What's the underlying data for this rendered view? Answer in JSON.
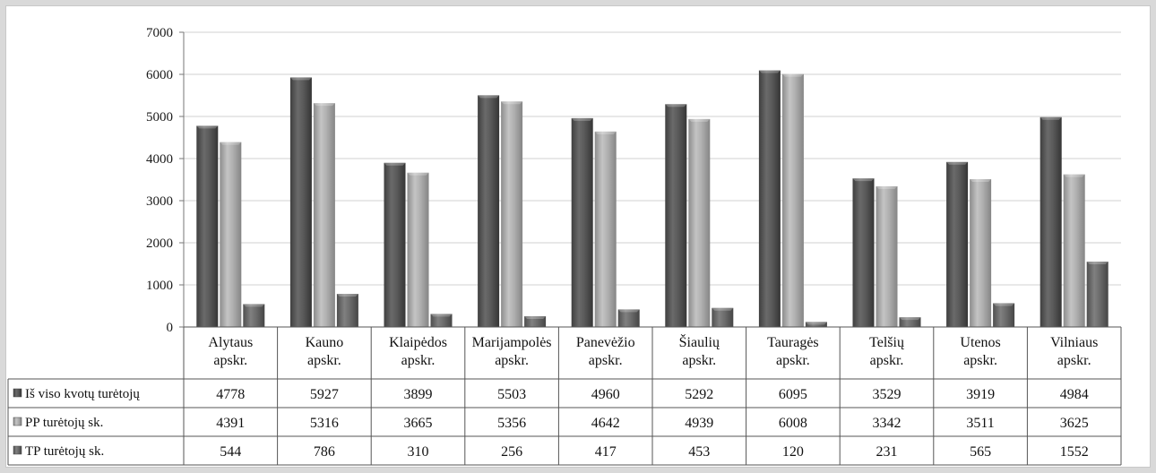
{
  "chart_data": {
    "type": "bar",
    "categories": [
      [
        "Alytaus",
        "apskr."
      ],
      [
        "Kauno",
        "apskr."
      ],
      [
        "Klaipėdos",
        "apskr."
      ],
      [
        "Marijampolės",
        "apskr."
      ],
      [
        "Panevėžio",
        "apskr."
      ],
      [
        "Šiaulių",
        "apskr."
      ],
      [
        "Tauragės",
        "apskr."
      ],
      [
        "Telšių",
        "apskr."
      ],
      [
        "Utenos",
        "apskr."
      ],
      [
        "Vilniaus",
        "apskr."
      ]
    ],
    "series": [
      {
        "name": "Iš viso kvotų turėtojų",
        "values": [
          4778,
          5927,
          3899,
          5503,
          4960,
          5292,
          6095,
          3529,
          3919,
          4984
        ],
        "color": "#555555"
      },
      {
        "name": "PP turėtojų sk.",
        "values": [
          4391,
          5316,
          3665,
          5356,
          4642,
          4939,
          6008,
          3342,
          3511,
          3625
        ],
        "color": "#a8a8a8"
      },
      {
        "name": "TP turėtojų sk.",
        "values": [
          544,
          786,
          310,
          256,
          417,
          453,
          120,
          231,
          565,
          1552
        ],
        "color": "#6e6e6e"
      }
    ],
    "y_ticks": [
      "0",
      "1000",
      "2000",
      "3000",
      "4000",
      "5000",
      "6000",
      "7000"
    ],
    "ylim": [
      0,
      7000
    ],
    "grid": true,
    "legend": "data-table",
    "title": "",
    "xlabel": "",
    "ylabel": ""
  }
}
